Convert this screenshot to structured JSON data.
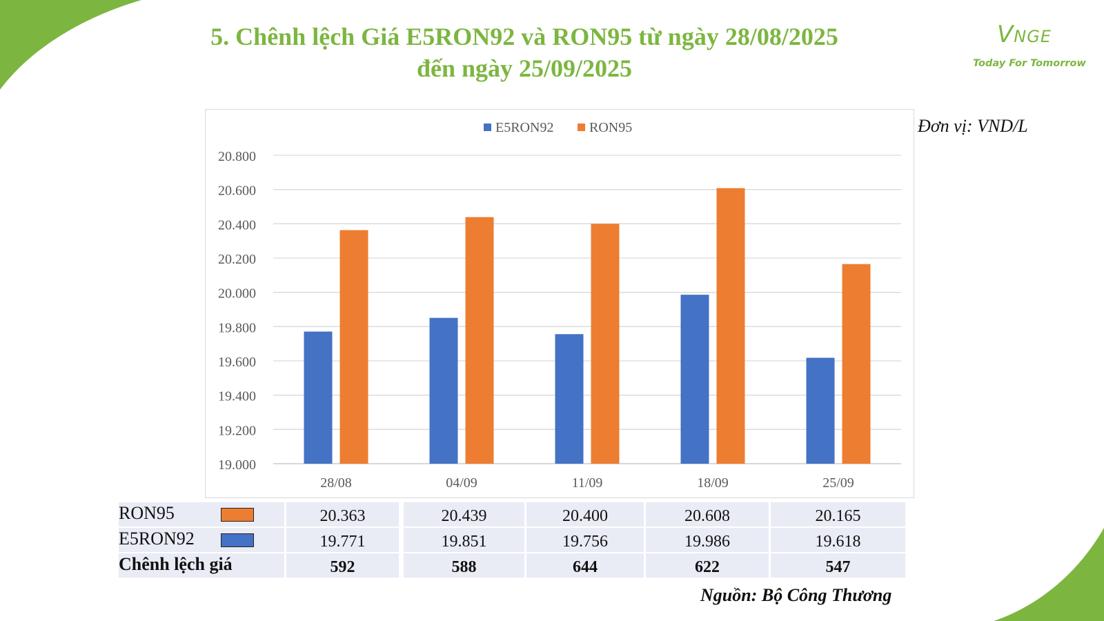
{
  "page": {
    "title_line1": "5. Chênh lệch Giá E5RON92 và RON95 từ ngày 28/08/2025",
    "title_line2": "đến ngày 25/09/2025",
    "unit": "Đơn vị: VND/L",
    "source": "Nguồn: Bộ Công Thương",
    "brand_colors": {
      "green": "#7cb640"
    }
  },
  "logo": {
    "mark_v": "V",
    "mark_rest": "NGE",
    "tagline": "Today For Tomorrow"
  },
  "chart_data": {
    "type": "bar",
    "title": "",
    "xlabel": "",
    "ylabel": "",
    "categories": [
      "28/08",
      "04/09",
      "11/09",
      "18/09",
      "25/09"
    ],
    "series": [
      {
        "name": "E5RON92",
        "color": "#4472c4",
        "values": [
          19771,
          19851,
          19756,
          19986,
          19618
        ]
      },
      {
        "name": "RON95",
        "color": "#ed7d31",
        "values": [
          20363,
          20439,
          20400,
          20608,
          20165
        ]
      }
    ],
    "ylim": [
      19000,
      20800
    ],
    "yticks": [
      19000,
      19200,
      19400,
      19600,
      19800,
      20000,
      20200,
      20400,
      20600,
      20800
    ],
    "ytick_labels": [
      "19.000",
      "19.200",
      "19.400",
      "19.600",
      "19.800",
      "20.000",
      "20.200",
      "20.400",
      "20.600",
      "20.800"
    ],
    "grid": true,
    "legend_position": "top-center"
  },
  "table": {
    "rows": [
      {
        "label": "RON95",
        "swatch": "#ed7d31",
        "bold": false,
        "values": [
          "20.363",
          "20.439",
          "20.400",
          "20.608",
          "20.165"
        ]
      },
      {
        "label": "E5RON92",
        "swatch": "#4472c4",
        "bold": false,
        "values": [
          "19.771",
          "19.851",
          "19.756",
          "19.986",
          "19.618"
        ]
      },
      {
        "label": "Chênh lệch giá",
        "swatch": "",
        "bold": true,
        "values": [
          "592",
          "588",
          "644",
          "622",
          "547"
        ]
      }
    ]
  }
}
